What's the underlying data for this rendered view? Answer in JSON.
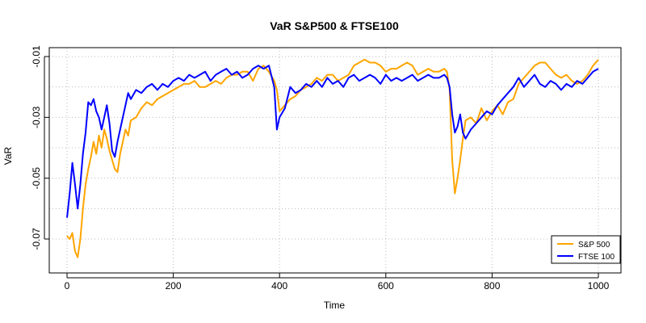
{
  "chart_data": {
    "type": "line",
    "title": "VaR S&P500 & FTSE100",
    "xlabel": "Time",
    "ylabel": "VaR",
    "xlim": [
      0,
      1000
    ],
    "ylim": [
      -0.078,
      -0.008
    ],
    "x_ticks": [
      "0",
      "200",
      "400",
      "600",
      "800",
      "1000"
    ],
    "y_ticks": [
      "-0.07",
      "-0.05",
      "-0.03",
      "-0.01"
    ],
    "grid": true,
    "legend_position": "bottom-right",
    "series": [
      {
        "name": "S&P 500",
        "color": "#FFA500",
        "x": [
          0,
          5,
          10,
          15,
          20,
          25,
          30,
          35,
          40,
          45,
          50,
          55,
          60,
          65,
          70,
          75,
          80,
          85,
          90,
          95,
          100,
          105,
          110,
          115,
          120,
          130,
          140,
          150,
          160,
          170,
          180,
          190,
          200,
          210,
          220,
          230,
          240,
          250,
          260,
          270,
          280,
          290,
          300,
          310,
          320,
          330,
          340,
          350,
          360,
          370,
          380,
          390,
          395,
          400,
          410,
          420,
          430,
          440,
          450,
          460,
          470,
          480,
          490,
          500,
          510,
          520,
          530,
          540,
          550,
          560,
          570,
          580,
          590,
          600,
          610,
          620,
          630,
          640,
          650,
          660,
          670,
          680,
          690,
          700,
          710,
          715,
          720,
          725,
          730,
          735,
          740,
          745,
          750,
          760,
          770,
          780,
          790,
          800,
          810,
          820,
          830,
          840,
          850,
          860,
          870,
          880,
          890,
          900,
          910,
          920,
          930,
          940,
          950,
          960,
          970,
          980,
          990,
          1000
        ],
        "values": [
          -0.069,
          -0.07,
          -0.068,
          -0.074,
          -0.076,
          -0.07,
          -0.06,
          -0.052,
          -0.047,
          -0.043,
          -0.038,
          -0.042,
          -0.036,
          -0.04,
          -0.034,
          -0.037,
          -0.041,
          -0.044,
          -0.047,
          -0.048,
          -0.042,
          -0.038,
          -0.034,
          -0.036,
          -0.031,
          -0.03,
          -0.027,
          -0.025,
          -0.026,
          -0.024,
          -0.023,
          -0.022,
          -0.021,
          -0.02,
          -0.019,
          -0.019,
          -0.018,
          -0.02,
          -0.02,
          -0.019,
          -0.018,
          -0.019,
          -0.017,
          -0.016,
          -0.016,
          -0.015,
          -0.015,
          -0.018,
          -0.014,
          -0.013,
          -0.015,
          -0.018,
          -0.021,
          -0.028,
          -0.026,
          -0.024,
          -0.023,
          -0.021,
          -0.02,
          -0.019,
          -0.017,
          -0.018,
          -0.016,
          -0.016,
          -0.018,
          -0.017,
          -0.016,
          -0.013,
          -0.012,
          -0.011,
          -0.012,
          -0.012,
          -0.013,
          -0.015,
          -0.014,
          -0.014,
          -0.013,
          -0.012,
          -0.013,
          -0.016,
          -0.015,
          -0.014,
          -0.015,
          -0.015,
          -0.014,
          -0.015,
          -0.021,
          -0.044,
          -0.055,
          -0.05,
          -0.044,
          -0.037,
          -0.031,
          -0.03,
          -0.032,
          -0.027,
          -0.031,
          -0.028,
          -0.026,
          -0.029,
          -0.025,
          -0.024,
          -0.019,
          -0.017,
          -0.015,
          -0.013,
          -0.012,
          -0.012,
          -0.014,
          -0.016,
          -0.017,
          -0.016,
          -0.018,
          -0.019,
          -0.018,
          -0.016,
          -0.013,
          -0.011
        ]
      },
      {
        "name": "FTSE 100",
        "color": "#0000FF",
        "x": [
          0,
          5,
          10,
          15,
          20,
          25,
          30,
          35,
          40,
          45,
          50,
          55,
          60,
          65,
          70,
          75,
          80,
          85,
          90,
          95,
          100,
          105,
          110,
          115,
          120,
          130,
          140,
          150,
          160,
          170,
          180,
          190,
          200,
          210,
          220,
          230,
          240,
          250,
          260,
          270,
          280,
          290,
          300,
          310,
          320,
          330,
          340,
          350,
          360,
          370,
          380,
          390,
          395,
          400,
          410,
          420,
          430,
          440,
          450,
          460,
          470,
          480,
          490,
          500,
          510,
          520,
          530,
          540,
          550,
          560,
          570,
          580,
          590,
          600,
          610,
          620,
          630,
          640,
          650,
          660,
          670,
          680,
          690,
          700,
          710,
          715,
          720,
          725,
          730,
          735,
          740,
          745,
          750,
          760,
          770,
          780,
          790,
          800,
          810,
          820,
          830,
          840,
          850,
          860,
          870,
          880,
          890,
          900,
          910,
          920,
          930,
          940,
          950,
          960,
          970,
          980,
          990,
          1000
        ],
        "values": [
          -0.063,
          -0.055,
          -0.045,
          -0.052,
          -0.06,
          -0.052,
          -0.042,
          -0.035,
          -0.025,
          -0.026,
          -0.024,
          -0.028,
          -0.03,
          -0.034,
          -0.03,
          -0.026,
          -0.032,
          -0.041,
          -0.043,
          -0.038,
          -0.034,
          -0.03,
          -0.026,
          -0.022,
          -0.024,
          -0.021,
          -0.022,
          -0.02,
          -0.019,
          -0.021,
          -0.019,
          -0.02,
          -0.018,
          -0.017,
          -0.018,
          -0.016,
          -0.017,
          -0.016,
          -0.015,
          -0.018,
          -0.016,
          -0.015,
          -0.014,
          -0.016,
          -0.015,
          -0.017,
          -0.016,
          -0.014,
          -0.013,
          -0.014,
          -0.013,
          -0.02,
          -0.034,
          -0.03,
          -0.027,
          -0.02,
          -0.022,
          -0.021,
          -0.019,
          -0.02,
          -0.018,
          -0.02,
          -0.017,
          -0.019,
          -0.018,
          -0.02,
          -0.017,
          -0.016,
          -0.018,
          -0.017,
          -0.016,
          -0.017,
          -0.019,
          -0.016,
          -0.018,
          -0.017,
          -0.018,
          -0.017,
          -0.016,
          -0.018,
          -0.017,
          -0.016,
          -0.017,
          -0.017,
          -0.016,
          -0.017,
          -0.02,
          -0.029,
          -0.035,
          -0.033,
          -0.029,
          -0.035,
          -0.037,
          -0.034,
          -0.032,
          -0.03,
          -0.028,
          -0.029,
          -0.026,
          -0.024,
          -0.022,
          -0.02,
          -0.017,
          -0.02,
          -0.018,
          -0.016,
          -0.019,
          -0.02,
          -0.018,
          -0.019,
          -0.021,
          -0.019,
          -0.02,
          -0.018,
          -0.019,
          -0.017,
          -0.015,
          -0.014
        ]
      }
    ]
  }
}
